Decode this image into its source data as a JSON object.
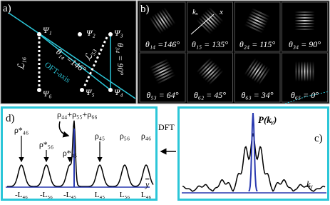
{
  "panel_a": {
    "label": "a)",
    "states": [
      "Ψ₁",
      "Ψ₂",
      "Ψ₃",
      "Ψ₄",
      "Ψ₅",
      "Ψ₆"
    ],
    "angle_14": "θ₁₄ =146°",
    "angle_34": "θ₃₄ = 90°",
    "length_16": "ℒ₁₆",
    "length_53": "ℒ₅₃",
    "axis": "OFT-axis"
  },
  "panel_b": {
    "label": "b)",
    "axis_k": "kₓ",
    "axis_x": "x",
    "tiles": [
      "θ₁₄ =146°",
      "θ₁₅ = 135°",
      "θ₂₄ = 115°",
      "θ₃₄ = 90°",
      "θ₅₃ = 64°",
      "θ₆₂ = 45°",
      "θ₆₃ = 34°",
      "θ₆₅ = 0°"
    ]
  },
  "panel_c": {
    "label": "c)",
    "title": "P(kᵧ)",
    "axis": "kᵧ"
  },
  "panel_d": {
    "label": "d)",
    "center": "ρ₄₄+ρ₅₅+ρ₆₆",
    "peaks": [
      "ρ*₄₆",
      "ρ*₅₆",
      "ρ*₄₅",
      "ρ₄₅",
      "ρ₅₆",
      "ρ₄₆"
    ],
    "ticks": [
      "-L₄₆",
      "-L₅₆",
      "-L₄₅",
      "L₄₅",
      "L₅₆",
      "L₄₆"
    ],
    "axis": "y"
  },
  "arrow_label": "DFT"
}
